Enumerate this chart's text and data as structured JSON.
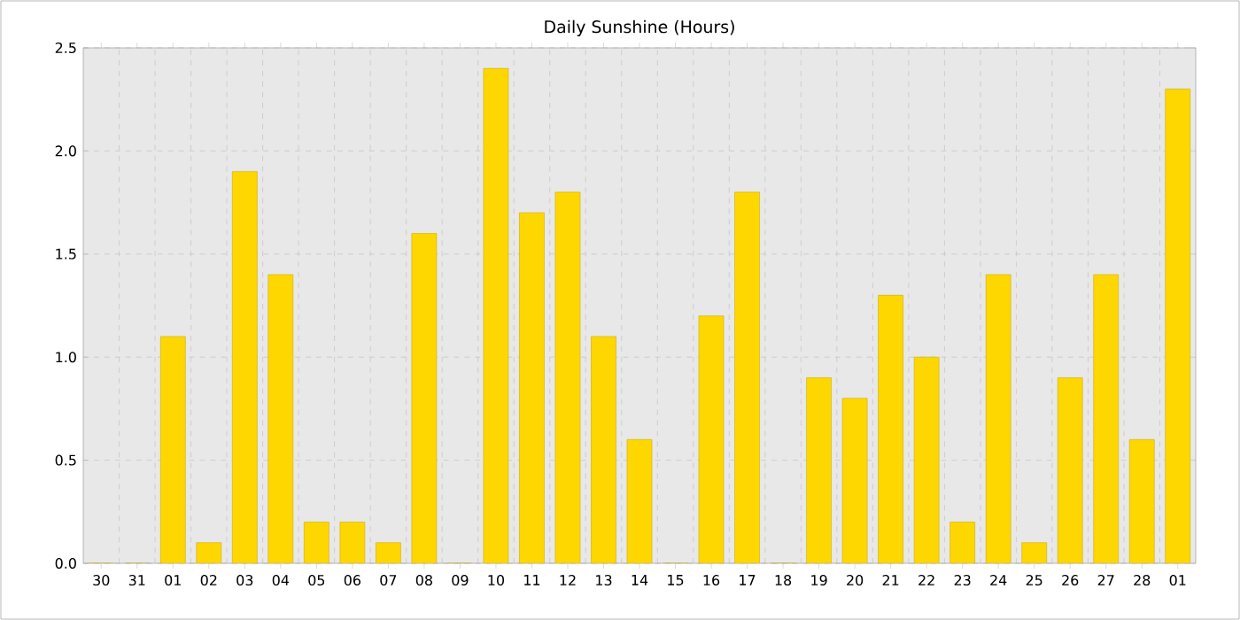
{
  "chart_data": {
    "type": "bar",
    "title": "Daily Sunshine (Hours)",
    "categories": [
      "30",
      "31",
      "01",
      "02",
      "03",
      "04",
      "05",
      "06",
      "07",
      "08",
      "09",
      "10",
      "11",
      "12",
      "13",
      "14",
      "15",
      "16",
      "17",
      "18",
      "19",
      "20",
      "21",
      "22",
      "23",
      "24",
      "25",
      "26",
      "27",
      "28",
      "01"
    ],
    "values": [
      0,
      0,
      1.1,
      0.1,
      1.9,
      1.4,
      0.2,
      0.2,
      0.1,
      1.6,
      0,
      2.4,
      1.7,
      1.8,
      1.1,
      0.6,
      0,
      1.2,
      1.8,
      0,
      0.9,
      0.8,
      1.3,
      1.0,
      0.2,
      1.4,
      0.1,
      0.9,
      1.4,
      0.6,
      2.3
    ],
    "color": "#ffd700",
    "ylim": [
      0,
      2.5
    ],
    "yticks": [
      {
        "value": 0,
        "label": "0.0"
      },
      0.5,
      {
        "value": 1,
        "label": "1.0"
      },
      1.5,
      {
        "value": 2,
        "label": "2.0"
      },
      2.5
    ],
    "grid": true
  }
}
